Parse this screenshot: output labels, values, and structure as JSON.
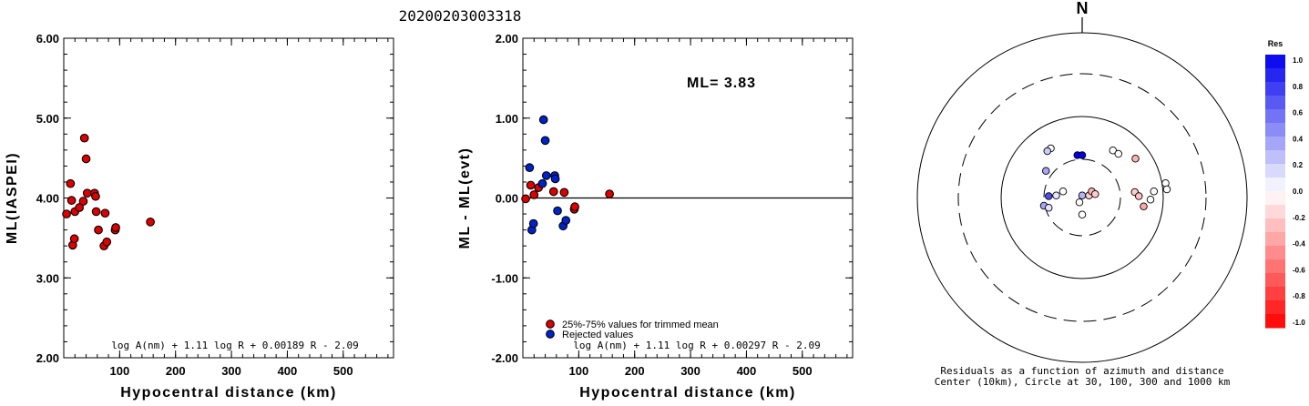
{
  "title": "20200203003318",
  "chart_data": [
    {
      "type": "scatter",
      "xlabel": "Hypocentral distance (km)",
      "ylabel": "ML(IASPEI)",
      "xlim": [
        0,
        590
      ],
      "ylim": [
        2.0,
        6.0
      ],
      "xticks": [
        "100",
        "200",
        "300",
        "400",
        "500"
      ],
      "xtick_values": [
        100,
        200,
        300,
        400,
        500
      ],
      "yticks": [
        "2.00",
        "3.00",
        "4.00",
        "5.00",
        "6.00"
      ],
      "ytick_values": [
        2.0,
        3.0,
        4.0,
        5.0,
        6.0
      ],
      "formula": "log A(nm) + 1.11 log R + 0.00189 R - 2.09",
      "series": [
        {
          "color": "#e00000",
          "points": [
            [
              5,
              3.8
            ],
            [
              12,
              4.18
            ],
            [
              14,
              3.97
            ],
            [
              16,
              3.41
            ],
            [
              19,
              3.49
            ],
            [
              20,
              3.83
            ],
            [
              28,
              3.88
            ],
            [
              35,
              3.96
            ],
            [
              37,
              4.75
            ],
            [
              40,
              4.49
            ],
            [
              42,
              4.06
            ],
            [
              55,
              4.06
            ],
            [
              57,
              4.02
            ],
            [
              58,
              3.83
            ],
            [
              62,
              3.6
            ],
            [
              72,
              3.4
            ],
            [
              74,
              3.81
            ],
            [
              77,
              3.45
            ],
            [
              92,
              3.6
            ],
            [
              93,
              3.63
            ],
            [
              155,
              3.7
            ]
          ]
        }
      ]
    },
    {
      "type": "scatter",
      "xlabel": "Hypocentral distance (km)",
      "ylabel": "ML - ML(evt)",
      "xlim": [
        0,
        590
      ],
      "ylim": [
        -2.0,
        2.0
      ],
      "xticks": [
        "100",
        "200",
        "300",
        "400",
        "500"
      ],
      "xtick_values": [
        100,
        200,
        300,
        400,
        500
      ],
      "yticks": [
        "-2.00",
        "-1.00",
        "0.00",
        "1.00",
        "2.00"
      ],
      "ytick_values": [
        -2.0,
        -1.0,
        0.0,
        1.0,
        2.0
      ],
      "zero_line": 0.0,
      "annotation": "ML= 3.83",
      "formula": "log A(nm) + 1.11 log R + 0.00297 R - 2.09",
      "legend": [
        "25%-75% values for trimmed mean",
        "Rejected values"
      ],
      "series": [
        {
          "name": "25%-75% values for trimmed mean",
          "color": "#e00000",
          "points": [
            [
              5,
              -0.01
            ],
            [
              14,
              0.16
            ],
            [
              20,
              0.04
            ],
            [
              28,
              0.13
            ],
            [
              55,
              0.08
            ],
            [
              74,
              0.07
            ],
            [
              92,
              -0.14
            ],
            [
              93,
              -0.11
            ],
            [
              155,
              0.05
            ]
          ]
        },
        {
          "name": "Rejected values",
          "color": "#0022cc",
          "points": [
            [
              12,
              0.38
            ],
            [
              16,
              -0.4
            ],
            [
              19,
              -0.32
            ],
            [
              35,
              0.18
            ],
            [
              37,
              0.98
            ],
            [
              40,
              0.72
            ],
            [
              42,
              0.28
            ],
            [
              57,
              0.28
            ],
            [
              58,
              0.24
            ],
            [
              62,
              -0.16
            ],
            [
              72,
              -0.35
            ],
            [
              77,
              -0.28
            ]
          ]
        }
      ]
    },
    {
      "type": "scatter",
      "subtype": "polar-residual-map",
      "north_label": "N",
      "caption": [
        "Residuals as a function of azimuth and distance",
        "Center (10km), Circle at 30, 100, 300 and 1000 km"
      ],
      "rings_km": [
        30,
        100,
        300,
        1000
      ],
      "center_km": 10,
      "colorbar": {
        "title": "Res",
        "ticks": [
          "1.0",
          "0.8",
          "0.6",
          "0.4",
          "0.2",
          "0.0",
          "-0.2",
          "-0.4",
          "-0.6",
          "-0.8",
          "-1.0"
        ],
        "max_color": "#0000ee",
        "mid_color": "#ffffff",
        "min_color": "#ff0000"
      },
      "points": [
        {
          "dx": -0.46,
          "dy": -0.72,
          "res": 0.0
        },
        {
          "dx": -0.51,
          "dy": -0.68,
          "res": 0.2
        },
        {
          "dx": -0.53,
          "dy": -0.39,
          "res": 0.35
        },
        {
          "dx": -0.49,
          "dy": -0.02,
          "res": 0.7
        },
        {
          "dx": -0.56,
          "dy": 0.12,
          "res": 0.35
        },
        {
          "dx": -0.49,
          "dy": 0.15,
          "res": 0.1
        },
        {
          "dx": -0.38,
          "dy": -0.03,
          "res": 0.1
        },
        {
          "dx": -0.28,
          "dy": -0.09,
          "res": 0.0
        },
        {
          "dx": -0.07,
          "dy": -0.62,
          "res": 1.0
        },
        {
          "dx": 0.0,
          "dy": -0.62,
          "res": 1.0
        },
        {
          "dx": 0.0,
          "dy": -0.03,
          "res": 0.3
        },
        {
          "dx": -0.04,
          "dy": 0.07,
          "res": 0.0
        },
        {
          "dx": 0.0,
          "dy": 0.25,
          "res": 0.0
        },
        {
          "dx": 0.1,
          "dy": -0.03,
          "res": -0.2
        },
        {
          "dx": 0.14,
          "dy": -0.09,
          "res": -0.3
        },
        {
          "dx": 0.19,
          "dy": -0.05,
          "res": -0.2
        },
        {
          "dx": 0.45,
          "dy": -0.69,
          "res": 0.0
        },
        {
          "dx": 0.53,
          "dy": -0.64,
          "res": 0.0
        },
        {
          "dx": 0.78,
          "dy": -0.57,
          "res": -0.3
        },
        {
          "dx": 0.77,
          "dy": -0.08,
          "res": -0.2
        },
        {
          "dx": 0.83,
          "dy": -0.02,
          "res": -0.25
        },
        {
          "dx": 0.9,
          "dy": 0.13,
          "res": -0.35
        },
        {
          "dx": 1.0,
          "dy": 0.03,
          "res": 0.0
        },
        {
          "dx": 1.05,
          "dy": -0.09,
          "res": 0.0
        },
        {
          "dx": 1.22,
          "dy": -0.21,
          "res": 0.0
        },
        {
          "dx": 1.24,
          "dy": -0.12,
          "res": 0.0
        }
      ]
    }
  ]
}
